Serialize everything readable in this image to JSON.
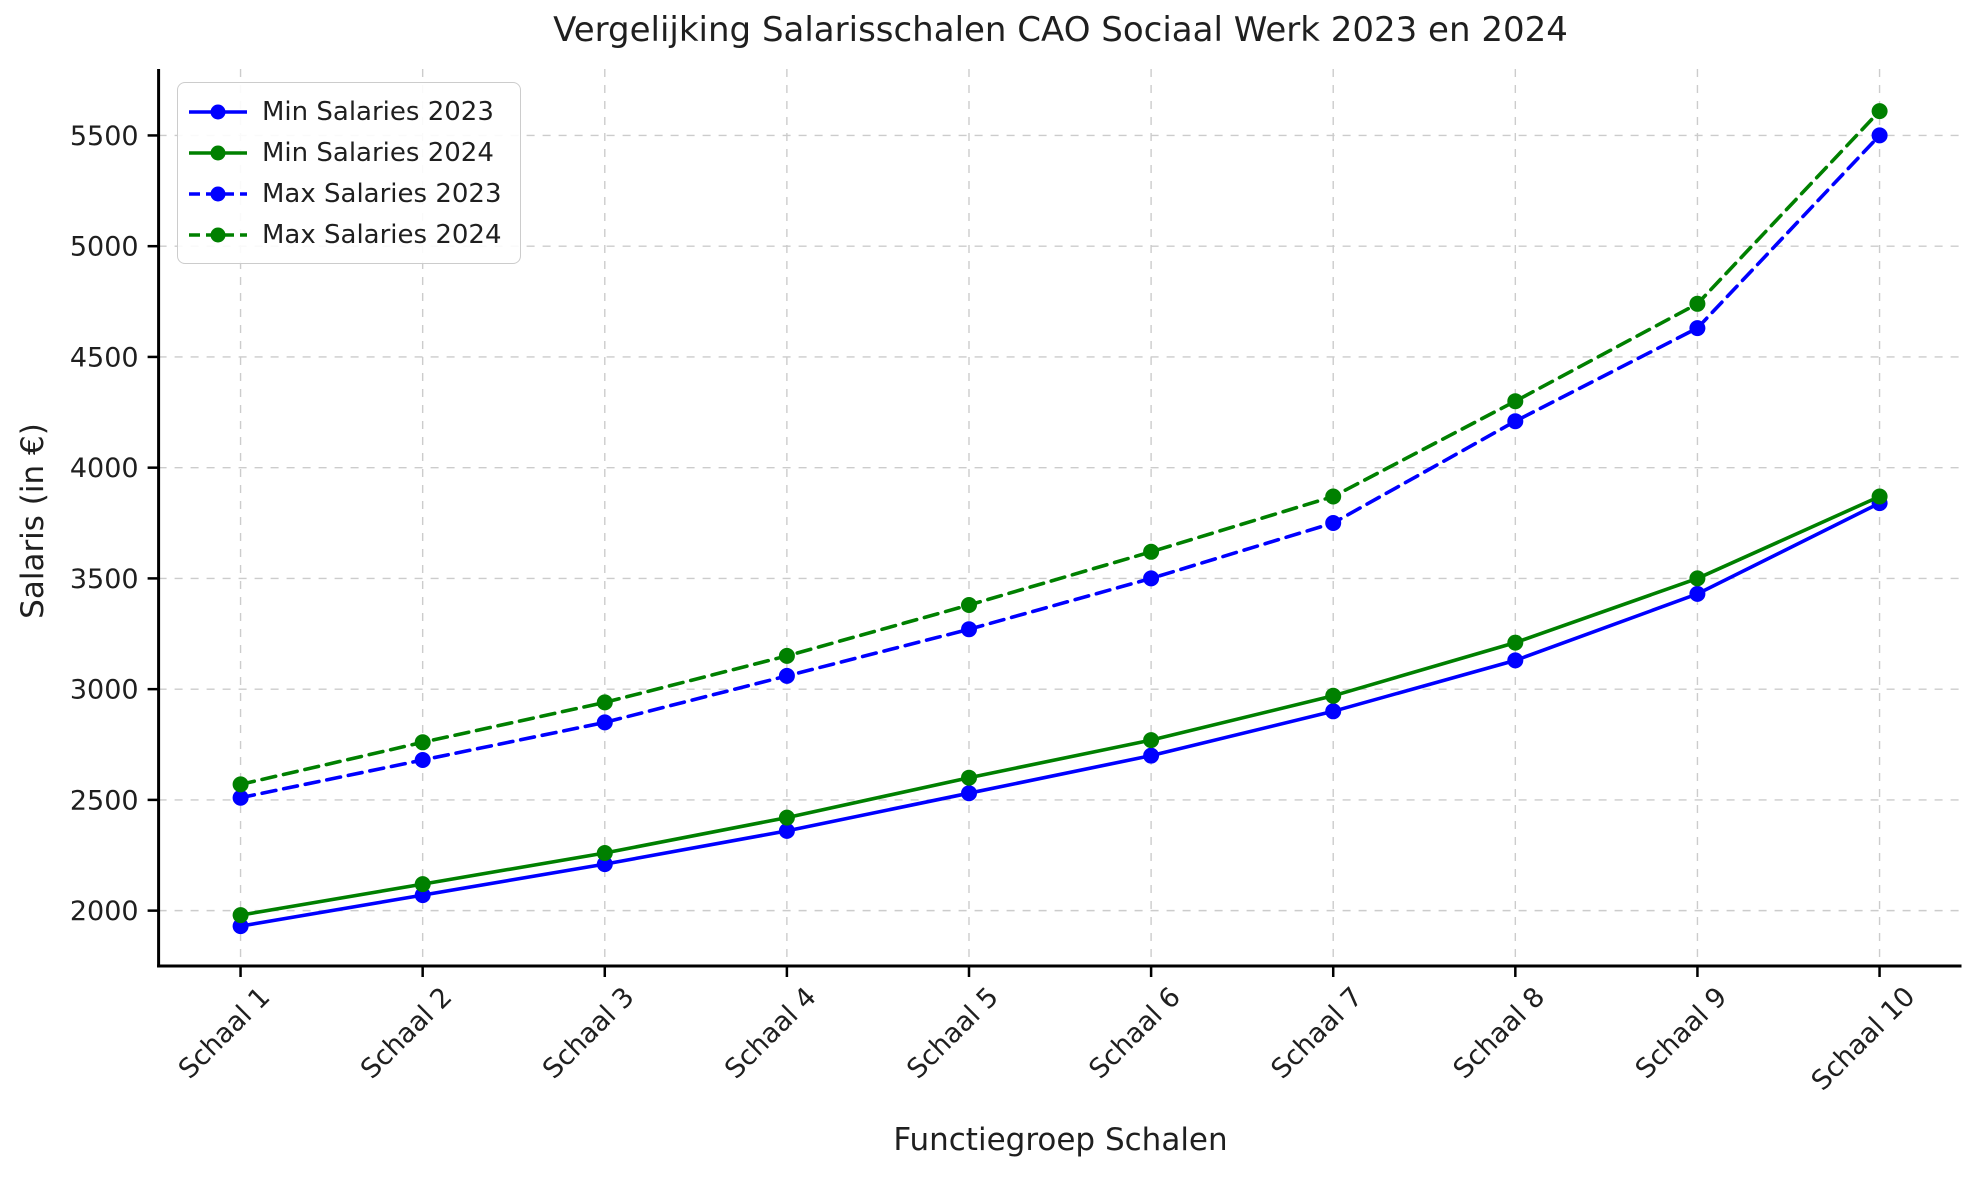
{
  "figure": {
    "title": "Vergelijking Salarisschalen CAO Sociaal Werk 2023 en 2024",
    "x_axis_label": "Functiegroep Schalen",
    "y_axis_label": "Salaris (in €)"
  },
  "chart_data": {
    "type": "line",
    "title": "Vergelijking Salarisschalen CAO Sociaal Werk 2023 en 2024",
    "xlabel": "Functiegroep Schalen",
    "ylabel": "Salaris (in €)",
    "categories": [
      "Schaal 1",
      "Schaal 2",
      "Schaal 3",
      "Schaal 4",
      "Schaal 5",
      "Schaal 6",
      "Schaal 7",
      "Schaal 8",
      "Schaal 9",
      "Schaal 10"
    ],
    "y_ticks": [
      2000,
      2500,
      3000,
      3500,
      4000,
      4500,
      5000,
      5500
    ],
    "ylim": [
      1750,
      5800
    ],
    "grid": true,
    "grid_color": "#cccccc",
    "background_color": "#ffffff",
    "spine_color": "#000000",
    "text_color": "#1f1f1f",
    "legend_position": "upper-left",
    "series": [
      {
        "name": "Min Salaries 2023",
        "color": "#0000ff",
        "style": "solid",
        "marker": "circle",
        "values": [
          1930,
          2070,
          2210,
          2360,
          2530,
          2700,
          2900,
          3130,
          3430,
          3840
        ]
      },
      {
        "name": "Min Salaries 2024",
        "color": "#008000",
        "style": "solid",
        "marker": "circle",
        "values": [
          1980,
          2120,
          2260,
          2420,
          2600,
          2770,
          2970,
          3210,
          3500,
          3870
        ]
      },
      {
        "name": "Max Salaries 2023",
        "color": "#0000ff",
        "style": "dashed",
        "marker": "circle",
        "values": [
          2510,
          2680,
          2850,
          3060,
          3270,
          3500,
          3750,
          4210,
          4630,
          5500
        ]
      },
      {
        "name": "Max Salaries 2024",
        "color": "#008000",
        "style": "dashed",
        "marker": "circle",
        "values": [
          2570,
          2760,
          2940,
          3150,
          3380,
          3620,
          3870,
          4300,
          4740,
          5610
        ]
      }
    ]
  }
}
